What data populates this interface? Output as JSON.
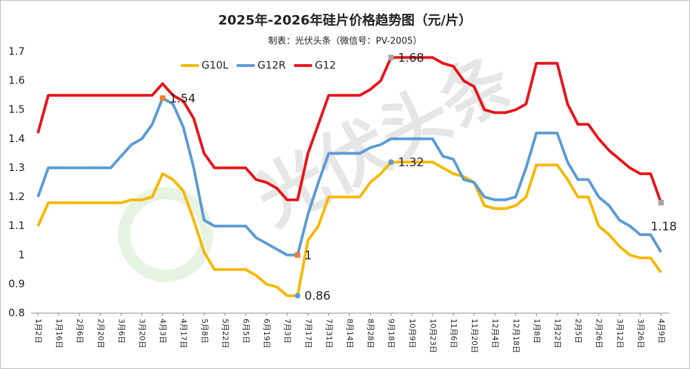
{
  "chart_data": {
    "type": "line",
    "title": "2025年-2026年硅片价格趋势图（元/片）",
    "subtitle": "制表：光伏头条（微信号：PV-2005）",
    "watermark": "光伏头条",
    "categories": [
      "1月2日",
      null,
      "1月16日",
      null,
      "2月6日",
      null,
      "2月20日",
      null,
      "3月6日",
      null,
      "3月20日",
      null,
      "4月3日",
      null,
      "4月17日",
      null,
      "5月8日",
      null,
      "5月22日",
      null,
      "6月5日",
      null,
      "6月19日",
      null,
      "7月3日",
      null,
      "7月17日",
      null,
      "7月31日",
      null,
      "8月14日",
      null,
      "8月28日",
      null,
      "9月18日",
      null,
      "10月9日",
      null,
      "10月23日",
      null,
      "11月6日",
      null,
      "11月20日",
      null,
      "12月4日",
      null,
      "12月18日",
      null,
      "1月8日",
      null,
      "1月22日",
      null,
      "2月5日",
      null,
      "2月26日",
      null,
      "3月12日",
      null,
      "3月26日",
      null,
      "4月9日"
    ],
    "series": [
      {
        "name": "G10L",
        "color": "#f5b800",
        "marker_color": "#5b9bd5",
        "values": [
          1.1,
          1.18,
          1.18,
          1.18,
          1.18,
          1.18,
          1.18,
          1.18,
          1.18,
          1.19,
          1.19,
          1.2,
          1.28,
          1.26,
          1.22,
          1.12,
          1.01,
          0.95,
          0.95,
          0.95,
          0.95,
          0.93,
          0.9,
          0.89,
          0.86,
          0.86,
          1.05,
          1.1,
          1.2,
          1.2,
          1.2,
          1.2,
          1.25,
          1.28,
          1.32,
          1.32,
          1.32,
          1.32,
          1.32,
          1.3,
          1.28,
          1.27,
          1.25,
          1.17,
          1.16,
          1.16,
          1.17,
          1.2,
          1.31,
          1.31,
          1.31,
          1.26,
          1.2,
          1.2,
          1.1,
          1.07,
          1.03,
          1.0,
          0.99,
          0.99,
          0.94
        ],
        "value_labels": [
          null,
          null,
          null,
          null,
          null,
          null,
          null,
          null,
          null,
          null,
          null,
          null,
          null,
          null,
          null,
          null,
          null,
          null,
          null,
          null,
          null,
          null,
          null,
          null,
          null,
          "0.86",
          null,
          null,
          null,
          null,
          null,
          null,
          null,
          null,
          "1.32",
          null,
          null,
          null,
          null,
          null,
          null,
          null,
          null,
          null,
          null,
          null,
          null,
          null,
          null,
          null,
          null,
          null,
          null,
          null,
          null,
          null,
          null,
          null,
          null,
          null,
          null
        ]
      },
      {
        "name": "G12R",
        "color": "#5b9bd5",
        "marker_color": "#ed7d31",
        "values": [
          1.2,
          1.3,
          1.3,
          1.3,
          1.3,
          1.3,
          1.3,
          1.3,
          1.34,
          1.38,
          1.4,
          1.45,
          1.54,
          1.52,
          1.44,
          1.3,
          1.12,
          1.1,
          1.1,
          1.1,
          1.1,
          1.06,
          1.04,
          1.02,
          1.0,
          1.0,
          1.14,
          1.25,
          1.35,
          1.35,
          1.35,
          1.35,
          1.37,
          1.38,
          1.4,
          1.4,
          1.4,
          1.4,
          1.4,
          1.34,
          1.33,
          1.26,
          1.25,
          1.2,
          1.19,
          1.19,
          1.2,
          1.3,
          1.42,
          1.42,
          1.42,
          1.32,
          1.26,
          1.26,
          1.2,
          1.17,
          1.12,
          1.1,
          1.07,
          1.07,
          1.01
        ],
        "value_labels": [
          null,
          null,
          null,
          null,
          null,
          null,
          null,
          null,
          null,
          null,
          null,
          null,
          "1.54",
          null,
          null,
          null,
          null,
          null,
          null,
          null,
          null,
          null,
          null,
          null,
          null,
          "1",
          null,
          null,
          null,
          null,
          null,
          null,
          null,
          null,
          null,
          null,
          null,
          null,
          null,
          null,
          null,
          null,
          null,
          null,
          null,
          null,
          null,
          null,
          null,
          null,
          null,
          null,
          null,
          null,
          null,
          null,
          null,
          null,
          null,
          null,
          null
        ]
      },
      {
        "name": "G12",
        "color": "#e8141b",
        "marker_color": "#a5a5a5",
        "values": [
          1.42,
          1.55,
          1.55,
          1.55,
          1.55,
          1.55,
          1.55,
          1.55,
          1.55,
          1.55,
          1.55,
          1.55,
          1.59,
          1.55,
          1.53,
          1.47,
          1.35,
          1.3,
          1.3,
          1.3,
          1.3,
          1.26,
          1.25,
          1.23,
          1.19,
          1.19,
          1.35,
          1.45,
          1.55,
          1.55,
          1.55,
          1.55,
          1.57,
          1.6,
          1.68,
          1.68,
          1.68,
          1.68,
          1.68,
          1.66,
          1.65,
          1.6,
          1.58,
          1.5,
          1.49,
          1.49,
          1.5,
          1.52,
          1.66,
          1.66,
          1.66,
          1.52,
          1.45,
          1.45,
          1.4,
          1.36,
          1.33,
          1.3,
          1.28,
          1.28,
          1.18
        ],
        "value_labels": [
          null,
          null,
          null,
          null,
          null,
          null,
          null,
          null,
          null,
          null,
          null,
          null,
          null,
          null,
          null,
          null,
          null,
          null,
          null,
          null,
          null,
          null,
          null,
          null,
          null,
          null,
          null,
          null,
          null,
          null,
          null,
          null,
          null,
          null,
          "1.68",
          null,
          null,
          null,
          null,
          null,
          null,
          null,
          null,
          null,
          null,
          null,
          null,
          null,
          null,
          null,
          null,
          null,
          null,
          null,
          null,
          null,
          null,
          null,
          null,
          null,
          "1.18"
        ]
      }
    ],
    "ylim": [
      0.8,
      1.7
    ],
    "yticks": [
      0.8,
      0.9,
      1,
      1.1,
      1.2,
      1.3,
      1.4,
      1.5,
      1.6,
      1.7
    ],
    "grid": false,
    "legend": "top"
  }
}
